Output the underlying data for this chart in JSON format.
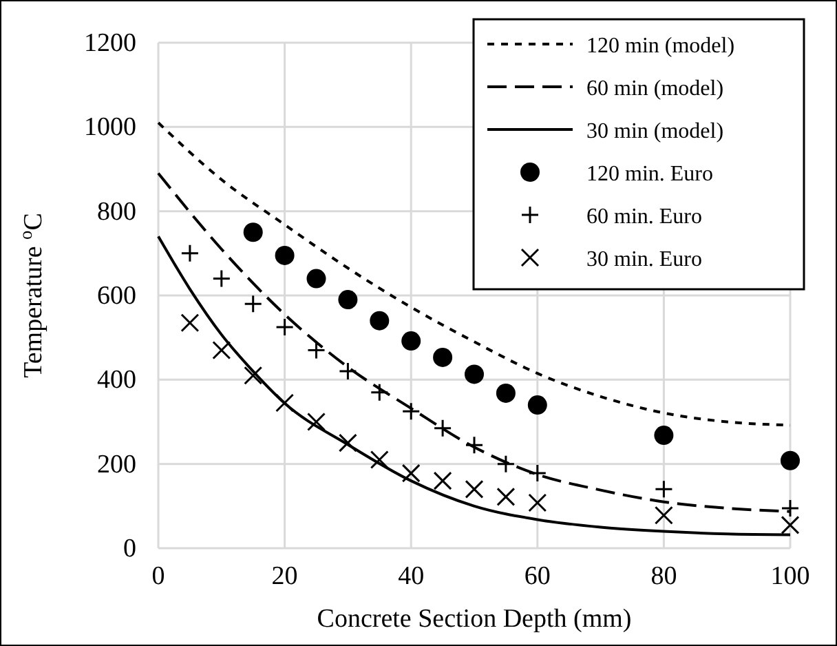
{
  "chart_data": {
    "type": "line",
    "xlabel": "Concrete Section Depth (mm)",
    "ylabel": "Temperature $^{o}$C",
    "xlim": [
      0,
      100
    ],
    "xticks": [
      0,
      20,
      40,
      60,
      80,
      100
    ],
    "ylim": [
      0,
      1200
    ],
    "yticks": [
      0,
      200,
      400,
      600,
      800,
      1000,
      1200
    ],
    "grid": true,
    "legend": "top right",
    "series": [
      {
        "name": "120 min (model)",
        "color": "#000000",
        "line_style": "dotted",
        "marker": "none",
        "x": [
          0,
          10,
          20,
          30,
          40,
          50,
          60,
          70,
          80,
          90,
          100
        ],
        "values": [
          1010,
          875,
          768,
          665,
          572,
          490,
          415,
          360,
          321,
          300,
          292
        ]
      },
      {
        "name": "60 min (model)",
        "color": "#000000",
        "line_style": "dashed",
        "marker": "none",
        "x": [
          0,
          10,
          20,
          30,
          40,
          50,
          60,
          70,
          80,
          90,
          100
        ],
        "values": [
          890,
          710,
          555,
          430,
          332,
          240,
          175,
          138,
          110,
          95,
          87
        ]
      },
      {
        "name": "30 min (model)",
        "color": "#000000",
        "line_style": "solid",
        "marker": "none",
        "x": [
          0,
          5,
          10,
          15,
          20,
          30,
          40,
          50,
          60,
          70,
          80,
          90,
          100
        ],
        "values": [
          740,
          615,
          507,
          420,
          344,
          246,
          160,
          100,
          68,
          50,
          40,
          34,
          32
        ]
      },
      {
        "name": "120 min. Euro",
        "type": "scatter",
        "color": "#000000",
        "marker": "circle",
        "x": [
          15,
          20,
          25,
          30,
          35,
          40,
          45,
          50,
          55,
          60,
          80,
          100
        ],
        "values": [
          750,
          695,
          640,
          590,
          540,
          492,
          453,
          413,
          368,
          340,
          268,
          208
        ]
      },
      {
        "name": "60 min. Euro",
        "type": "scatter",
        "color": "#000000",
        "marker": "cross",
        "x": [
          5,
          10,
          15,
          20,
          25,
          30,
          35,
          40,
          45,
          50,
          55,
          60,
          80,
          100
        ],
        "values": [
          700,
          640,
          580,
          525,
          470,
          420,
          370,
          325,
          285,
          245,
          200,
          178,
          140,
          95
        ]
      },
      {
        "name": "30 min. Euro",
        "type": "scatter",
        "color": "#000000",
        "marker": "x",
        "x": [
          5,
          10,
          15,
          20,
          25,
          30,
          35,
          40,
          45,
          50,
          55,
          60,
          80,
          100
        ],
        "values": [
          535,
          470,
          410,
          345,
          300,
          250,
          210,
          178,
          160,
          140,
          122,
          108,
          78,
          55
        ]
      }
    ]
  }
}
